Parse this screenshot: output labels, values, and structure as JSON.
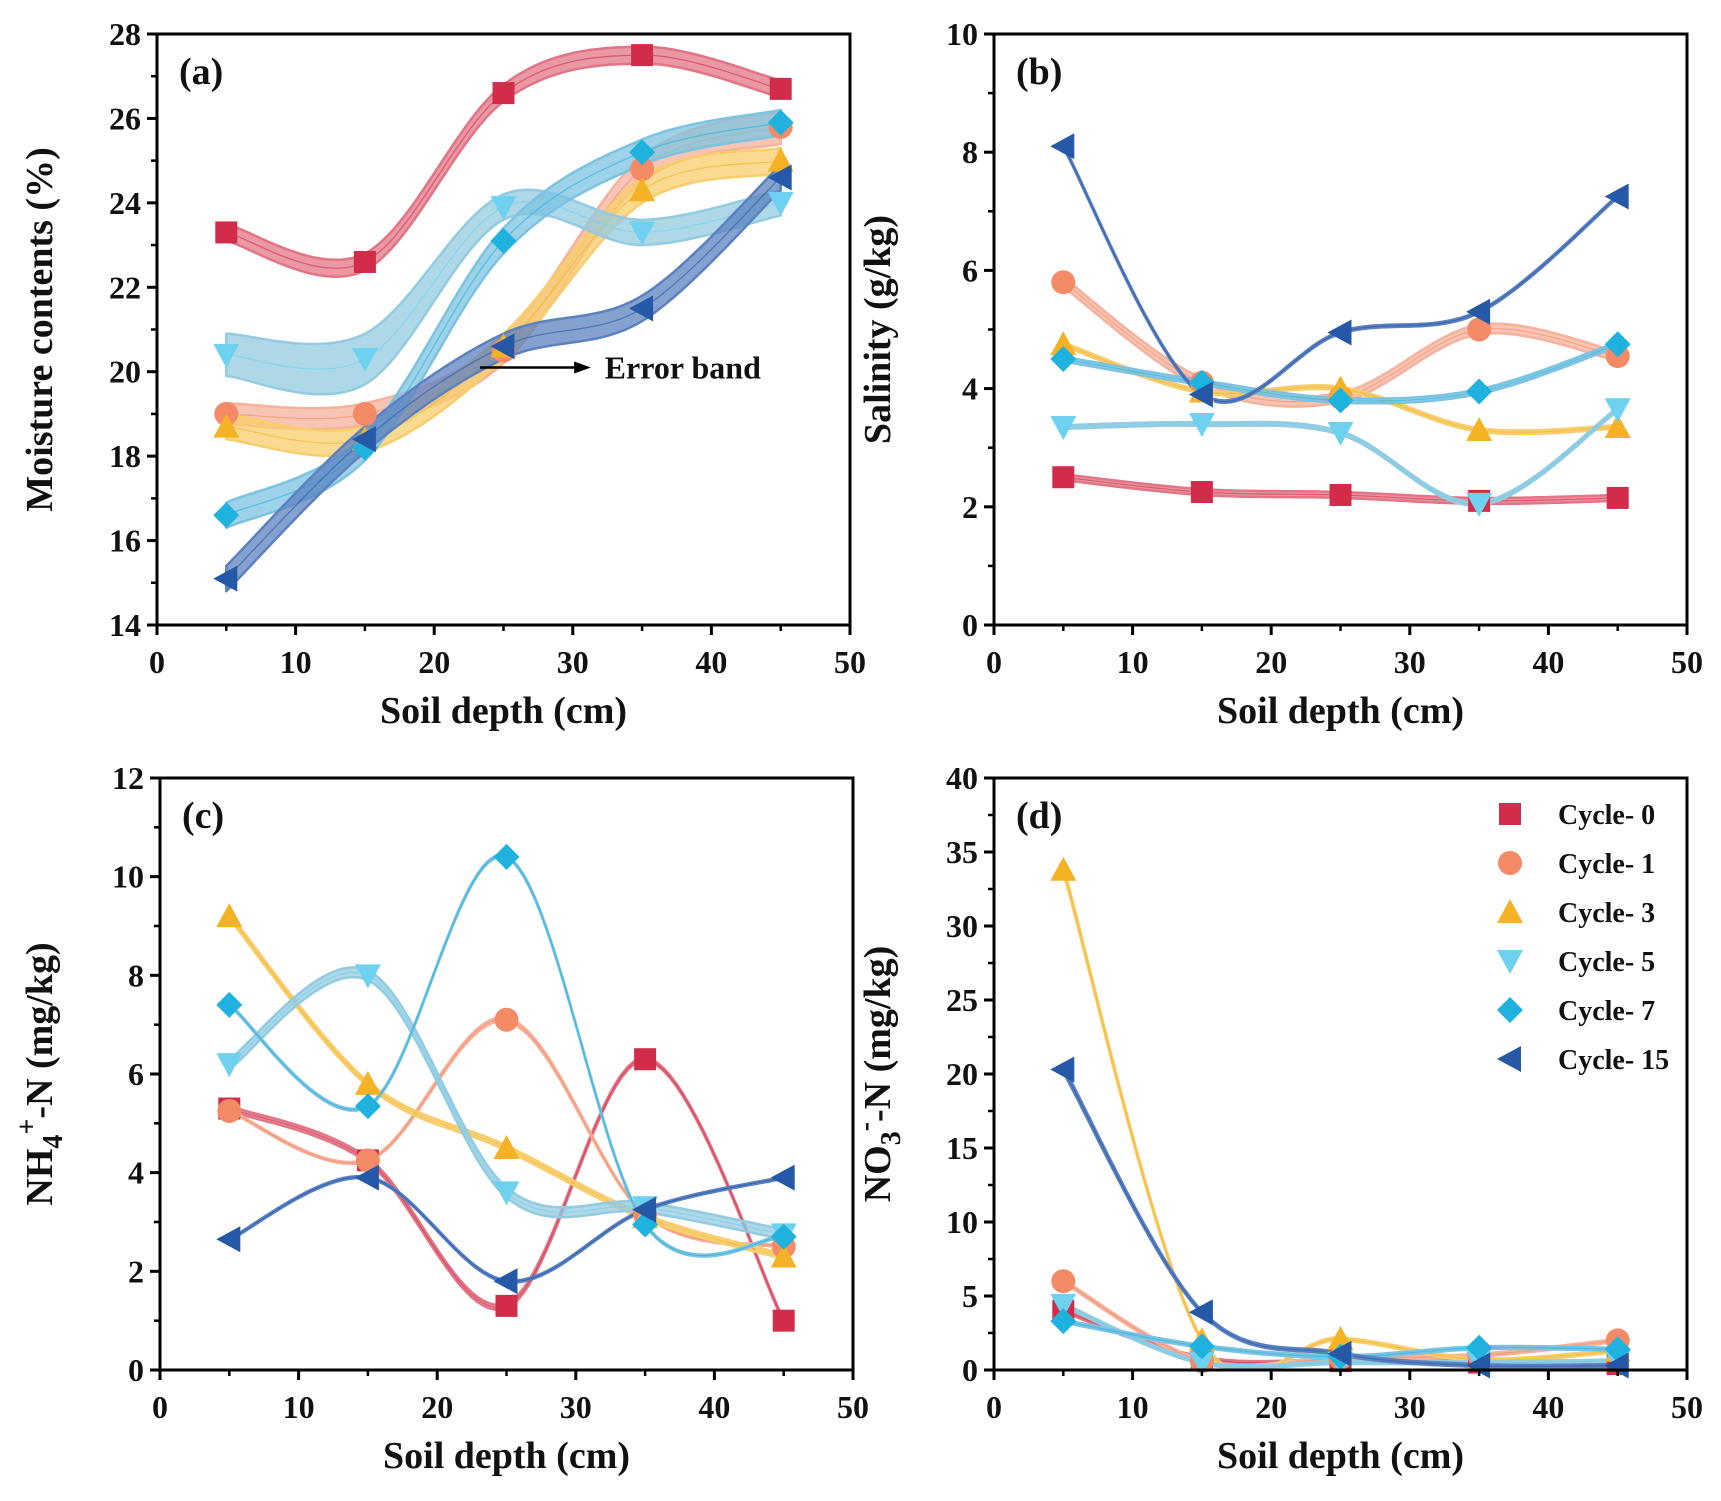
{
  "chart_data": [
    {
      "type": "line",
      "panel": "(a)",
      "xlabel": "Soil depth (cm)",
      "ylabel": "Moisture contents (%)",
      "xlim": [
        0,
        50
      ],
      "ylim": [
        14,
        28
      ],
      "xticks": [
        0,
        10,
        20,
        30,
        40,
        50
      ],
      "yticks": [
        14,
        16,
        18,
        20,
        22,
        24,
        26,
        28
      ],
      "x": [
        5,
        15,
        25,
        35,
        45
      ],
      "annotation": "Error band",
      "series": [
        {
          "name": "Cycle- 0",
          "values": [
            23.3,
            22.6,
            26.6,
            27.5,
            26.7
          ],
          "band": [
            0.2,
            0.2,
            0.2,
            0.2,
            0.2
          ]
        },
        {
          "name": "Cycle- 1",
          "values": [
            19.0,
            19.0,
            20.5,
            24.8,
            25.8
          ],
          "band": [
            0.25,
            0.25,
            0.3,
            0.3,
            0.4
          ]
        },
        {
          "name": "Cycle- 3",
          "values": [
            18.7,
            18.4,
            20.6,
            24.3,
            25.0
          ],
          "band": [
            0.3,
            0.3,
            0.3,
            0.3,
            0.3
          ]
        },
        {
          "name": "Cycle- 5",
          "values": [
            20.4,
            20.3,
            23.9,
            23.3,
            24.0
          ],
          "band": [
            0.5,
            0.6,
            0.3,
            0.3,
            0.3
          ]
        },
        {
          "name": "Cycle- 7",
          "values": [
            16.6,
            18.2,
            23.1,
            25.2,
            25.9
          ],
          "band": [
            0.3,
            0.3,
            0.3,
            0.3,
            0.3
          ]
        },
        {
          "name": "Cycle- 15",
          "values": [
            15.1,
            18.4,
            20.6,
            21.5,
            24.6
          ],
          "band": [
            0.3,
            0.3,
            0.3,
            0.3,
            0.3
          ]
        }
      ]
    },
    {
      "type": "line",
      "panel": "(b)",
      "xlabel": "Soil depth (cm)",
      "ylabel": "Salinity (g/kg)",
      "xlim": [
        0,
        50
      ],
      "ylim": [
        0,
        10
      ],
      "xticks": [
        0,
        10,
        20,
        30,
        40,
        50
      ],
      "yticks": [
        0,
        2,
        4,
        6,
        8,
        10
      ],
      "x": [
        5,
        15,
        25,
        35,
        45
      ],
      "series": [
        {
          "name": "Cycle- 0",
          "values": [
            2.5,
            2.25,
            2.2,
            2.1,
            2.15
          ],
          "band": [
            0.05,
            0.05,
            0.05,
            0.05,
            0.05
          ]
        },
        {
          "name": "Cycle- 1",
          "values": [
            5.8,
            4.1,
            3.85,
            5.0,
            4.55
          ],
          "band": [
            0.08,
            0.08,
            0.08,
            0.08,
            0.08
          ]
        },
        {
          "name": "Cycle- 3",
          "values": [
            4.75,
            3.95,
            4.0,
            3.3,
            3.35
          ],
          "band": [
            0.03,
            0.03,
            0.03,
            0.03,
            0.03
          ]
        },
        {
          "name": "Cycle- 5",
          "values": [
            3.35,
            3.4,
            3.25,
            2.05,
            3.65
          ],
          "band": [
            0.03,
            0.03,
            0.03,
            0.03,
            0.03
          ]
        },
        {
          "name": "Cycle- 7",
          "values": [
            4.5,
            4.1,
            3.8,
            3.95,
            4.75
          ],
          "band": [
            0.04,
            0.04,
            0.04,
            0.04,
            0.04
          ]
        },
        {
          "name": "Cycle- 15",
          "values": [
            8.1,
            3.9,
            4.95,
            5.3,
            7.25
          ],
          "band": [
            0.02,
            0.02,
            0.02,
            0.02,
            0.02
          ]
        }
      ]
    },
    {
      "type": "line",
      "panel": "(c)",
      "xlabel": "Soil depth (cm)",
      "ylabel_parts": {
        "main": "NH",
        "sub": "4",
        "sup": "+",
        "rest": "-N (mg/kg)"
      },
      "xlim": [
        0,
        50
      ],
      "ylim": [
        0,
        12
      ],
      "xticks": [
        0,
        10,
        20,
        30,
        40,
        50
      ],
      "yticks": [
        0,
        2,
        4,
        6,
        8,
        10,
        12
      ],
      "x": [
        5,
        15,
        25,
        35,
        45
      ],
      "series": [
        {
          "name": "Cycle- 0",
          "values": [
            5.3,
            4.25,
            1.3,
            6.3,
            1.0
          ],
          "band": [
            0.05,
            0.05,
            0.05,
            0.03,
            0.03
          ]
        },
        {
          "name": "Cycle- 1",
          "values": [
            5.25,
            4.25,
            7.1,
            3.15,
            2.5
          ],
          "band": [
            0.02,
            0.02,
            0.04,
            0.02,
            0.02
          ]
        },
        {
          "name": "Cycle- 3",
          "values": [
            9.2,
            5.8,
            4.5,
            3.1,
            2.3
          ],
          "band": [
            0.05,
            0.05,
            0.05,
            0.05,
            0.05
          ]
        },
        {
          "name": "Cycle- 5",
          "values": [
            6.2,
            8.0,
            3.6,
            3.3,
            2.75
          ],
          "band": [
            0.1,
            0.1,
            0.1,
            0.1,
            0.1
          ]
        },
        {
          "name": "Cycle- 7",
          "values": [
            7.4,
            5.35,
            10.4,
            2.95,
            2.7
          ],
          "band": [
            0.02,
            0.02,
            0.02,
            0.02,
            0.02
          ]
        },
        {
          "name": "Cycle- 15",
          "values": [
            2.65,
            3.9,
            1.8,
            3.25,
            3.9
          ],
          "band": [
            0.02,
            0.02,
            0.02,
            0.02,
            0.02
          ]
        }
      ]
    },
    {
      "type": "line",
      "panel": "(d)",
      "xlabel": "Soil depth (cm)",
      "ylabel_parts": {
        "main": "NO",
        "sub": "3",
        "sup": "-",
        "rest": "-N (mg/kg)"
      },
      "xlim": [
        0,
        50
      ],
      "ylim": [
        0,
        40
      ],
      "xticks": [
        0,
        10,
        20,
        30,
        40,
        50
      ],
      "yticks": [
        0,
        5,
        10,
        15,
        20,
        25,
        30,
        35,
        40
      ],
      "x": [
        5,
        15,
        25,
        35,
        45
      ],
      "legend_position": "top-right",
      "series": [
        {
          "name": "Cycle- 0",
          "values": [
            4.0,
            0.8,
            0.6,
            0.5,
            0.4
          ],
          "band": [
            0.1,
            0.1,
            0.1,
            0.1,
            0.1
          ]
        },
        {
          "name": "Cycle- 1",
          "values": [
            6.0,
            0.6,
            0.8,
            1.0,
            2.0
          ],
          "band": [
            0.1,
            0.1,
            0.1,
            0.1,
            0.1
          ]
        },
        {
          "name": "Cycle- 3",
          "values": [
            33.8,
            2.0,
            2.1,
            0.7,
            1.3
          ],
          "band": [
            0.2,
            0.1,
            0.1,
            0.1,
            0.1
          ]
        },
        {
          "name": "Cycle- 5",
          "values": [
            4.4,
            0.5,
            0.5,
            0.5,
            0.6
          ],
          "band": [
            0.1,
            0.1,
            0.1,
            0.1,
            0.1
          ]
        },
        {
          "name": "Cycle- 7",
          "values": [
            3.3,
            1.6,
            0.9,
            1.5,
            1.4
          ],
          "band": [
            0.1,
            0.1,
            0.1,
            0.1,
            0.1
          ]
        },
        {
          "name": "Cycle- 15",
          "values": [
            20.3,
            3.9,
            1.1,
            0.3,
            0.3
          ],
          "band": [
            0.2,
            0.1,
            0.1,
            0.1,
            0.1
          ]
        }
      ]
    }
  ],
  "legend": [
    {
      "name": "Cycle- 0",
      "marker": "square"
    },
    {
      "name": "Cycle- 1",
      "marker": "circle"
    },
    {
      "name": "Cycle- 3",
      "marker": "triangle-up"
    },
    {
      "name": "Cycle- 5",
      "marker": "triangle-down"
    },
    {
      "name": "Cycle- 7",
      "marker": "diamond"
    },
    {
      "name": "Cycle- 15",
      "marker": "triangle-left"
    }
  ],
  "colors": {
    "Cycle- 0": {
      "marker": "#d12d4a",
      "band": "#e27585"
    },
    "Cycle- 1": {
      "marker": "#f48a66",
      "band": "#f6b29c"
    },
    "Cycle- 3": {
      "marker": "#f4b224",
      "band": "#f8cd6c"
    },
    "Cycle- 5": {
      "marker": "#6fd1f0",
      "band": "#93cbe0"
    },
    "Cycle- 7": {
      "marker": "#1fb2df",
      "band": "#7cc3e2"
    },
    "Cycle- 15": {
      "marker": "#2558a6",
      "band": "#5b81c0"
    }
  }
}
